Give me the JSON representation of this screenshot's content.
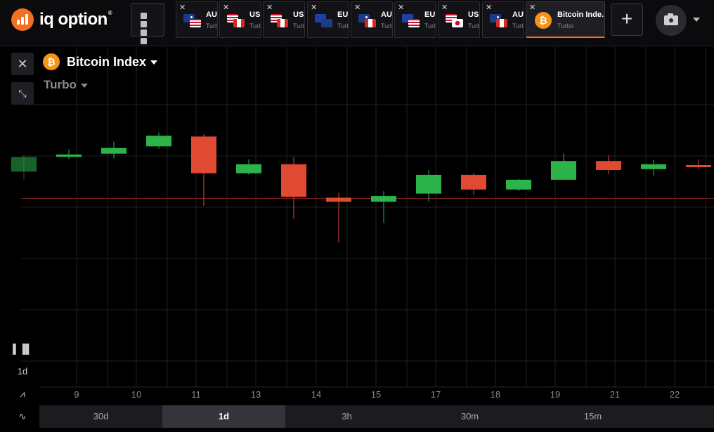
{
  "brand": {
    "name": "iq option",
    "reg": "®",
    "accent": "#f36f21"
  },
  "tabs": [
    {
      "symbol": "AU",
      "type": "Turbo",
      "flags": [
        "au",
        "us"
      ]
    },
    {
      "symbol": "USI",
      "type": "Turb",
      "flags": [
        "us",
        "ca"
      ]
    },
    {
      "symbol": "USI",
      "type": "Turb",
      "flags": [
        "us",
        "ca"
      ]
    },
    {
      "symbol": "EUI",
      "type": "Turb",
      "flags": [
        "eu",
        "nz"
      ]
    },
    {
      "symbol": "AUI",
      "type": "Turb",
      "flags": [
        "au",
        "ca"
      ]
    },
    {
      "symbol": "EUI",
      "type": "Turb",
      "flags": [
        "eu",
        "us"
      ]
    },
    {
      "symbol": "USI",
      "type": "Turb",
      "flags": [
        "us",
        "jp"
      ]
    },
    {
      "symbol": "AUI",
      "type": "Turb",
      "flags": [
        "au",
        "ca"
      ]
    }
  ],
  "active_tab": {
    "symbol": "Bitcoin Inde...",
    "type": "Turbo",
    "icon": "bitcoin-icon"
  },
  "asset": {
    "name": "Bitcoin Index",
    "type": "Turbo",
    "coin_glyph": "₿"
  },
  "toolbar": {
    "timeframe": "1d"
  },
  "x_axis_labels": [
    "9",
    "10",
    "11",
    "13",
    "14",
    "15",
    "17",
    "18",
    "19",
    "21",
    "22"
  ],
  "periods": [
    {
      "label": "30d",
      "active": false
    },
    {
      "label": "1d",
      "active": true
    },
    {
      "label": "3h",
      "active": false
    },
    {
      "label": "30m",
      "active": false
    },
    {
      "label": "15m",
      "active": false
    }
  ],
  "colors": {
    "up": "#2cb34a",
    "down": "#e04a32",
    "grid": "#1f1f24",
    "price_line": "#7a1f1f"
  },
  "chart_data": {
    "type": "candlestick",
    "y_scale": "unlabeled relative price",
    "candles": [
      {
        "open": 0.42,
        "close": 0.6,
        "high": 0.62,
        "low": 0.32,
        "dir": "up",
        "faded": true
      },
      {
        "open": 0.6,
        "close": 0.63,
        "high": 0.69,
        "low": 0.57,
        "dir": "up"
      },
      {
        "open": 0.64,
        "close": 0.71,
        "high": 0.79,
        "low": 0.58,
        "dir": "up"
      },
      {
        "open": 0.73,
        "close": 0.86,
        "high": 0.9,
        "low": 0.7,
        "dir": "up"
      },
      {
        "open": 0.85,
        "close": 0.4,
        "high": 0.88,
        "low": 0.0,
        "dir": "down"
      },
      {
        "open": 0.4,
        "close": 0.51,
        "high": 0.57,
        "low": 0.38,
        "dir": "up"
      },
      {
        "open": 0.51,
        "close": 0.11,
        "high": 0.6,
        "low": -0.16,
        "dir": "down"
      },
      {
        "open": 0.1,
        "close": 0.05,
        "high": 0.16,
        "low": -0.45,
        "dir": "down"
      },
      {
        "open": 0.05,
        "close": 0.12,
        "high": 0.18,
        "low": -0.21,
        "dir": "up"
      },
      {
        "open": 0.15,
        "close": 0.38,
        "high": 0.44,
        "low": 0.05,
        "dir": "up"
      },
      {
        "open": 0.38,
        "close": 0.2,
        "high": 0.4,
        "low": 0.14,
        "dir": "down"
      },
      {
        "open": 0.2,
        "close": 0.32,
        "high": 0.33,
        "low": 0.18,
        "dir": "up"
      },
      {
        "open": 0.32,
        "close": 0.55,
        "high": 0.64,
        "low": 0.32,
        "dir": "up"
      },
      {
        "open": 0.55,
        "close": 0.44,
        "high": 0.62,
        "low": 0.39,
        "dir": "down"
      },
      {
        "open": 0.45,
        "close": 0.51,
        "high": 0.56,
        "low": 0.37,
        "dir": "up"
      },
      {
        "open": 0.5,
        "close": 0.49,
        "high": 0.57,
        "low": 0.45,
        "dir": "down"
      }
    ],
    "current_price": 0.09,
    "grid": true
  }
}
